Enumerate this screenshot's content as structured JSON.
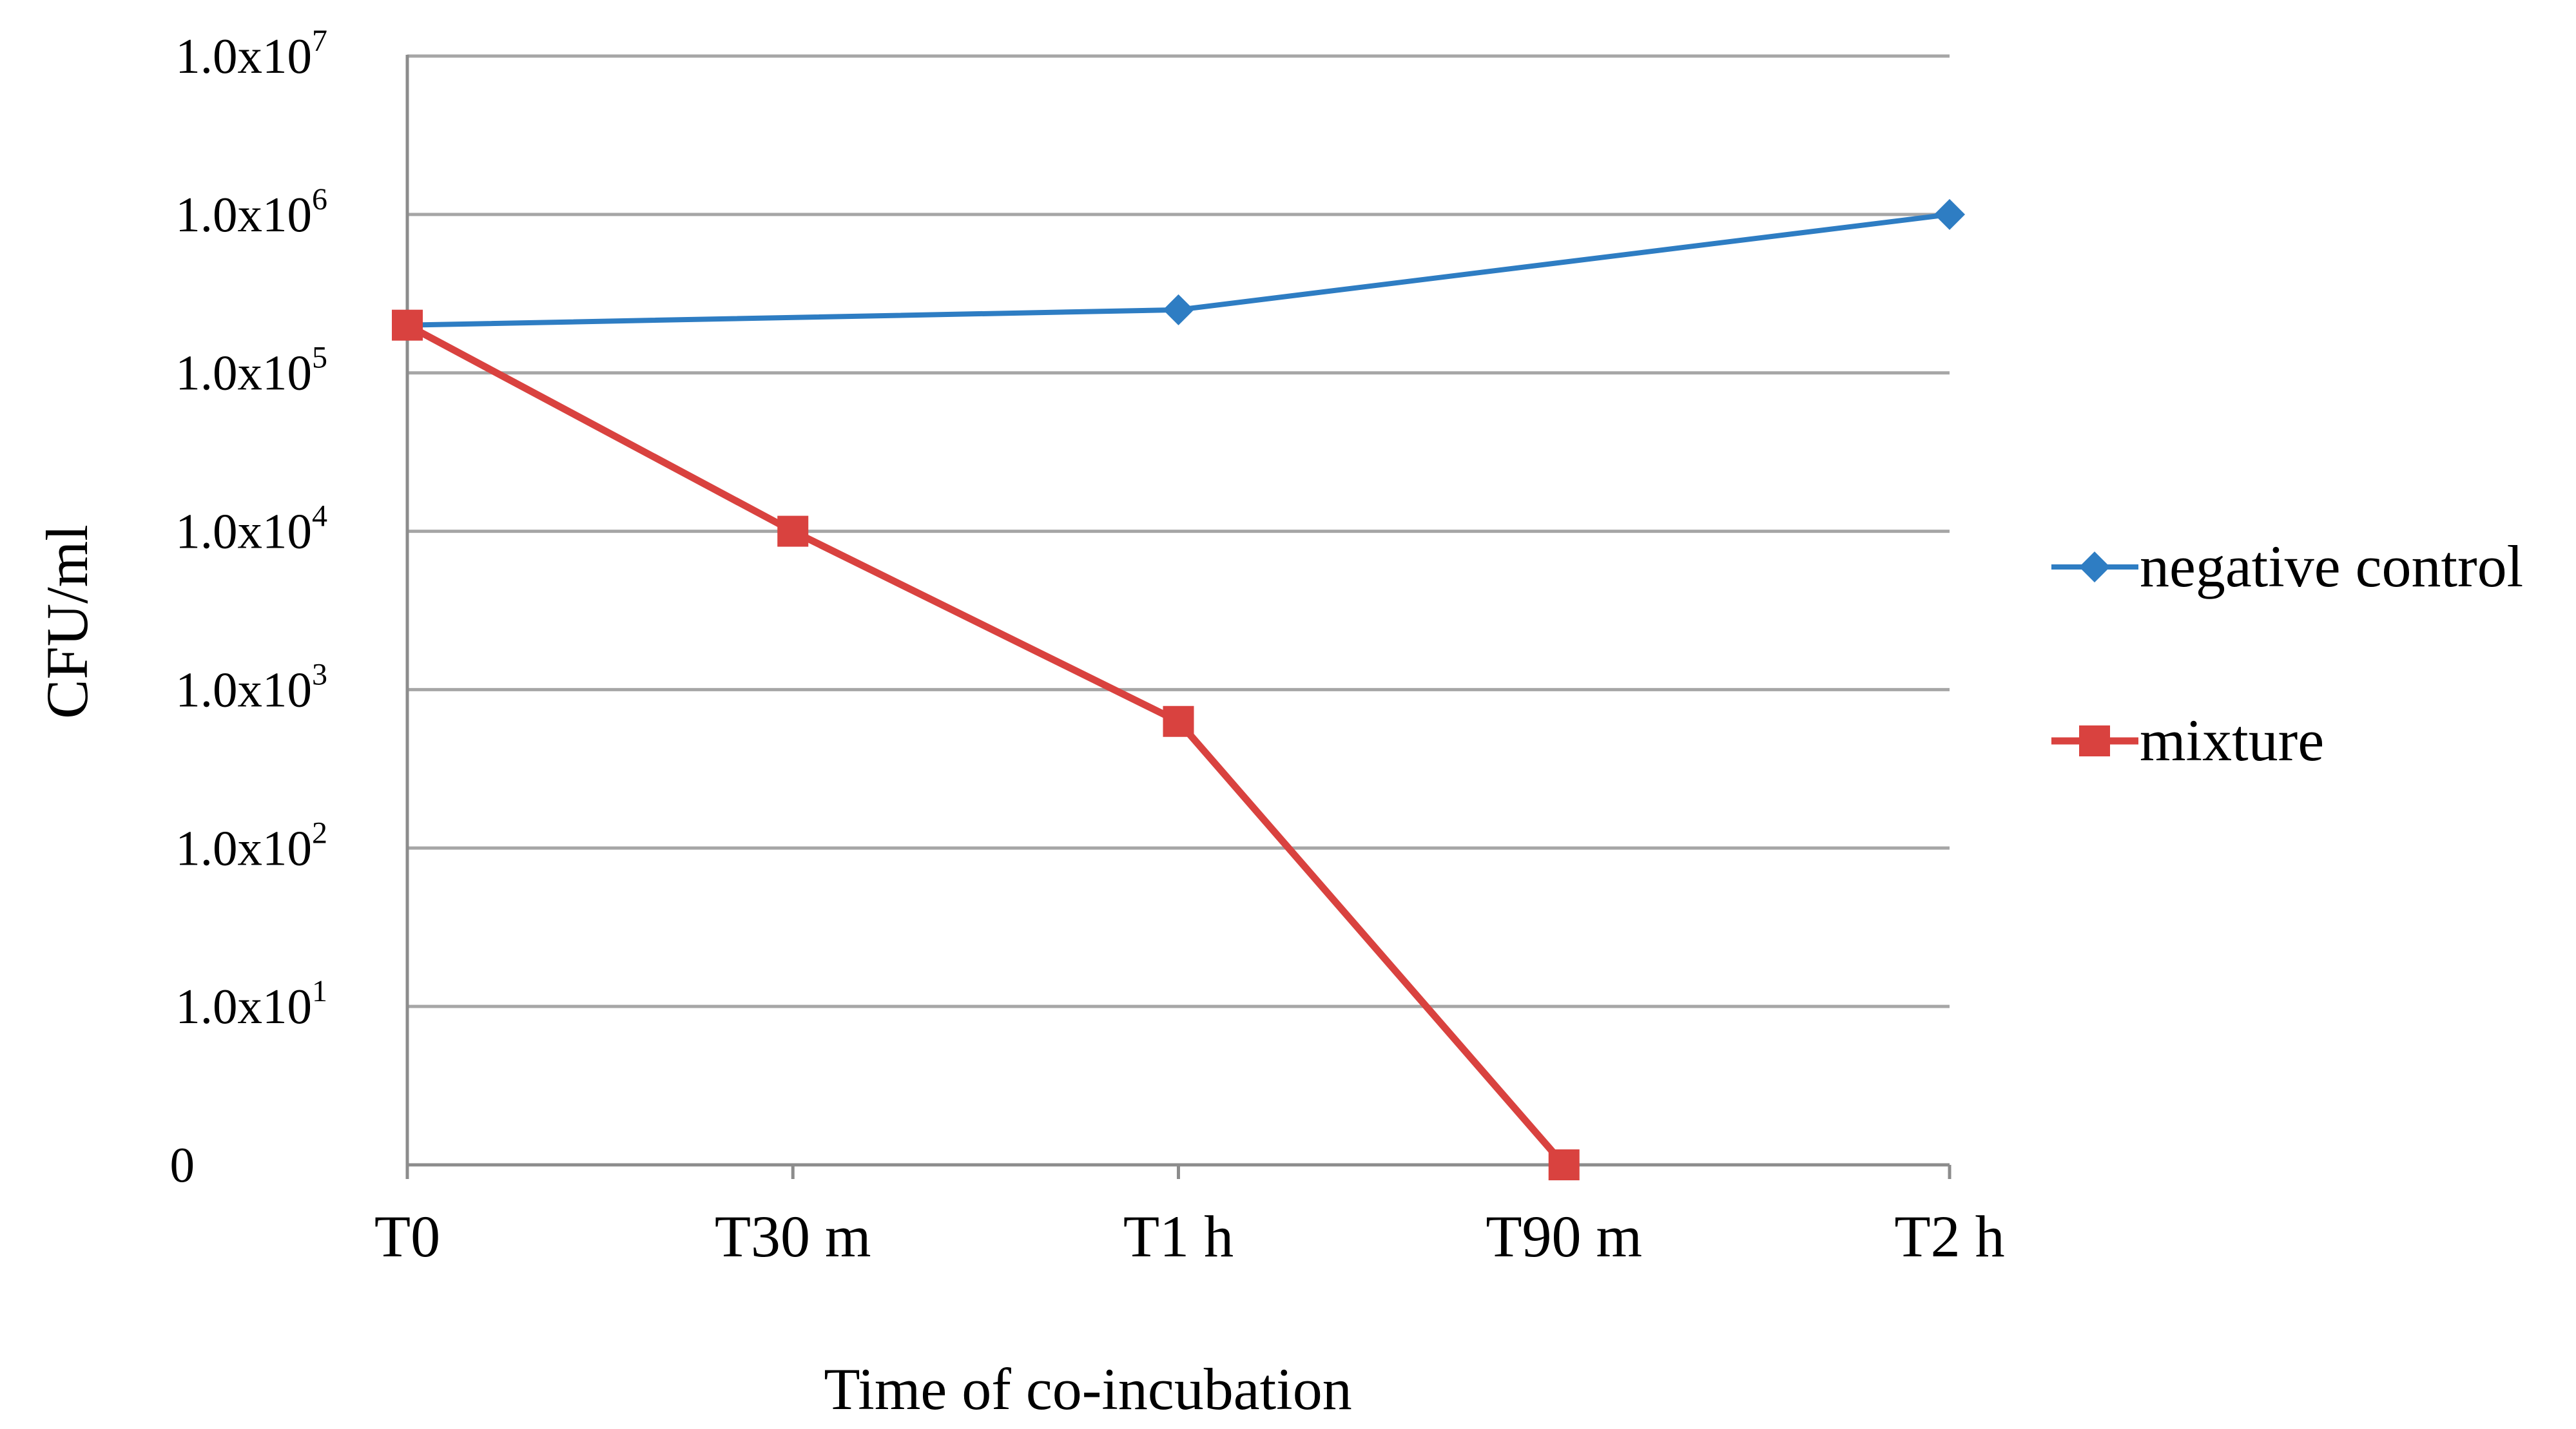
{
  "chart_data": {
    "type": "line",
    "title": "",
    "xlabel": "Time of co-incubation",
    "ylabel": "CFU/ml",
    "categories": [
      "T0",
      "T30 m",
      "T1 h",
      "T90 m",
      "T2 h"
    ],
    "y_scale": "log",
    "ylim": [
      0,
      7
    ],
    "y_ticks": [
      {
        "value": 0,
        "base": "0",
        "exp": ""
      },
      {
        "value": 1,
        "base": "1.0x10",
        "exp": "1"
      },
      {
        "value": 2,
        "base": "1.0x10",
        "exp": "2"
      },
      {
        "value": 3,
        "base": "1.0x10",
        "exp": "3"
      },
      {
        "value": 4,
        "base": "1.0x10",
        "exp": "4"
      },
      {
        "value": 5,
        "base": "1.0x10",
        "exp": "5"
      },
      {
        "value": 6,
        "base": "1.0x10",
        "exp": "6"
      },
      {
        "value": 7,
        "base": "1.0x10",
        "exp": "7"
      }
    ],
    "grid": true,
    "legend_position": "right",
    "series": [
      {
        "name": "negative control",
        "color": "#2e7dc3",
        "marker": "diamond",
        "values": [
          200000,
          null,
          250000,
          null,
          1000000
        ]
      },
      {
        "name": "mixture",
        "color": "#d9423f",
        "marker": "square",
        "values": [
          200000,
          10000,
          630,
          0,
          null
        ]
      }
    ]
  }
}
